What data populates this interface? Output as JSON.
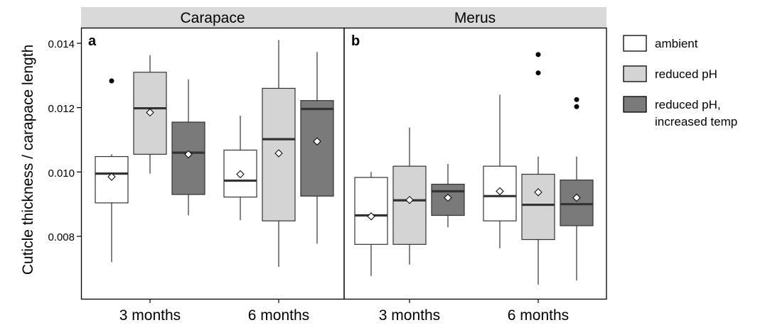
{
  "chart_data": [
    {
      "type": "box",
      "strip_title": "Carapace",
      "panel_tag": "a",
      "ylabel": "Cuticle thickness / carapace length",
      "ylim": [
        0.0063,
        0.0145
      ],
      "yticks": [
        "0.008",
        "0.010",
        "0.012",
        "0.014"
      ],
      "categories": [
        "3 months",
        "6 months"
      ],
      "series": [
        {
          "name": "ambient",
          "boxes": [
            {
              "category": "3 months",
              "whisker_low": 0.0072,
              "q1": 0.00904,
              "median": 0.00995,
              "q3": 0.01048,
              "whisker_high": 0.01055,
              "mean": 0.00985,
              "outliers": [
                0.01283
              ]
            },
            {
              "category": "6 months",
              "whisker_low": 0.0085,
              "q1": 0.00922,
              "median": 0.00973,
              "q3": 0.01068,
              "whisker_high": 0.01175,
              "mean": 0.00993,
              "outliers": []
            }
          ]
        },
        {
          "name": "reduced pH",
          "boxes": [
            {
              "category": "3 months",
              "whisker_low": 0.00995,
              "q1": 0.01055,
              "median": 0.01198,
              "q3": 0.0131,
              "whisker_high": 0.01363,
              "mean": 0.01185,
              "outliers": []
            },
            {
              "category": "6 months",
              "whisker_low": 0.00705,
              "q1": 0.00848,
              "median": 0.01102,
              "q3": 0.0126,
              "whisker_high": 0.0141,
              "mean": 0.01058,
              "outliers": []
            }
          ]
        },
        {
          "name": "reduced pH, increased temp",
          "boxes": [
            {
              "category": "3 months",
              "whisker_low": 0.00865,
              "q1": 0.0093,
              "median": 0.0106,
              "q3": 0.01155,
              "whisker_high": 0.01288,
              "mean": 0.01055,
              "outliers": []
            },
            {
              "category": "6 months",
              "whisker_low": 0.00777,
              "q1": 0.00925,
              "median": 0.01196,
              "q3": 0.01222,
              "whisker_high": 0.01373,
              "mean": 0.01095,
              "outliers": []
            }
          ]
        }
      ]
    },
    {
      "type": "box",
      "strip_title": "Merus",
      "panel_tag": "b",
      "ylim": [
        0.0063,
        0.0145
      ],
      "categories": [
        "3 months",
        "6 months"
      ],
      "series": [
        {
          "name": "ambient",
          "boxes": [
            {
              "category": "3 months",
              "whisker_low": 0.00677,
              "q1": 0.00775,
              "median": 0.00865,
              "q3": 0.00983,
              "whisker_high": 0.01,
              "mean": 0.00862,
              "outliers": []
            },
            {
              "category": "6 months",
              "whisker_low": 0.00763,
              "q1": 0.00848,
              "median": 0.00925,
              "q3": 0.01018,
              "whisker_high": 0.0124,
              "mean": 0.0094,
              "outliers": []
            }
          ]
        },
        {
          "name": "reduced pH",
          "boxes": [
            {
              "category": "3 months",
              "whisker_low": 0.00712,
              "q1": 0.00775,
              "median": 0.00912,
              "q3": 0.01018,
              "whisker_high": 0.01138,
              "mean": 0.00913,
              "outliers": []
            },
            {
              "category": "6 months",
              "whisker_low": 0.0065,
              "q1": 0.0079,
              "median": 0.00898,
              "q3": 0.00993,
              "whisker_high": 0.01048,
              "mean": 0.00937,
              "outliers": [
                0.01308,
                0.01365
              ]
            }
          ]
        },
        {
          "name": "reduced pH, increased temp",
          "boxes": [
            {
              "category": "3 months",
              "whisker_low": 0.00828,
              "q1": 0.00865,
              "median": 0.0094,
              "q3": 0.00962,
              "whisker_high": 0.01025,
              "mean": 0.0092,
              "outliers": []
            },
            {
              "category": "6 months",
              "whisker_low": 0.00663,
              "q1": 0.00833,
              "median": 0.009,
              "q3": 0.00975,
              "whisker_high": 0.01048,
              "mean": 0.0092,
              "outliers": [
                0.01203,
                0.01225
              ]
            }
          ]
        }
      ]
    }
  ],
  "legend": {
    "position": "right",
    "items": [
      {
        "label": "ambient",
        "color": "#ffffff"
      },
      {
        "label": "reduced pH",
        "color": "#d4d4d4"
      },
      {
        "label": "reduced pH,",
        "label_line2": "increased temp",
        "color": "#7a7a7a"
      }
    ]
  },
  "colors": {
    "strip_bg": "#d9d9d9",
    "ambient": "#ffffff",
    "reduced_ph": "#d4d4d4",
    "reduced_ph_temp": "#7a7a7a"
  }
}
